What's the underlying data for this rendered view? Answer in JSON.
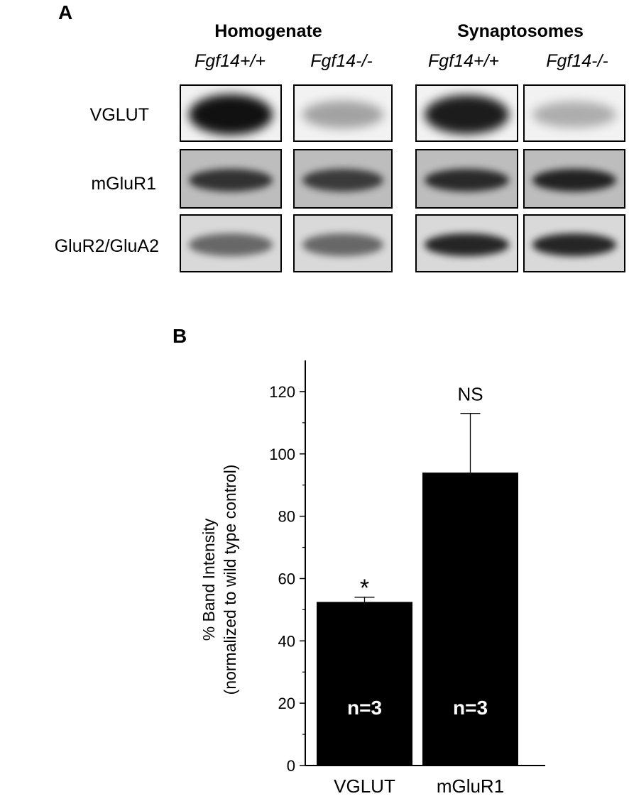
{
  "panel_a": {
    "letter": "A",
    "groups": [
      "Homogenate",
      "Synaptosomes"
    ],
    "genotypes": [
      "Fgf14+/+",
      "Fgf14-/-",
      "Fgf14+/+",
      "Fgf14-/-"
    ],
    "rows": [
      {
        "label": "VGLUT",
        "background": "#f2f2f2",
        "band_color": "#111111",
        "band_strengths": [
          1.0,
          0.35,
          0.95,
          0.3
        ]
      },
      {
        "label": "mGluR1",
        "background": "#bdbdbd",
        "band_color": "#1a1a1a",
        "band_strengths": [
          0.85,
          0.8,
          0.9,
          0.95
        ]
      },
      {
        "label": "GluR2/GluA2",
        "background": "#d9d9d9",
        "band_color": "#1c1c1c",
        "band_strengths": [
          0.6,
          0.6,
          0.95,
          0.95
        ]
      }
    ]
  },
  "panel_b": {
    "letter": "B",
    "chart_data": {
      "type": "bar",
      "categories": [
        "VGLUT",
        "mGluR1"
      ],
      "values": [
        52.5,
        94
      ],
      "errors": [
        1.5,
        19
      ],
      "significance": [
        "*",
        "NS"
      ],
      "bar_labels": [
        "n=3",
        "n=3"
      ],
      "ylabel": "% Band Intensity",
      "ylabel2": "(normalized to wild type control)",
      "ylim": [
        0,
        130
      ],
      "yticks": [
        0,
        20,
        40,
        60,
        80,
        100,
        120
      ],
      "bar_color": "#000000",
      "grid": false
    }
  }
}
